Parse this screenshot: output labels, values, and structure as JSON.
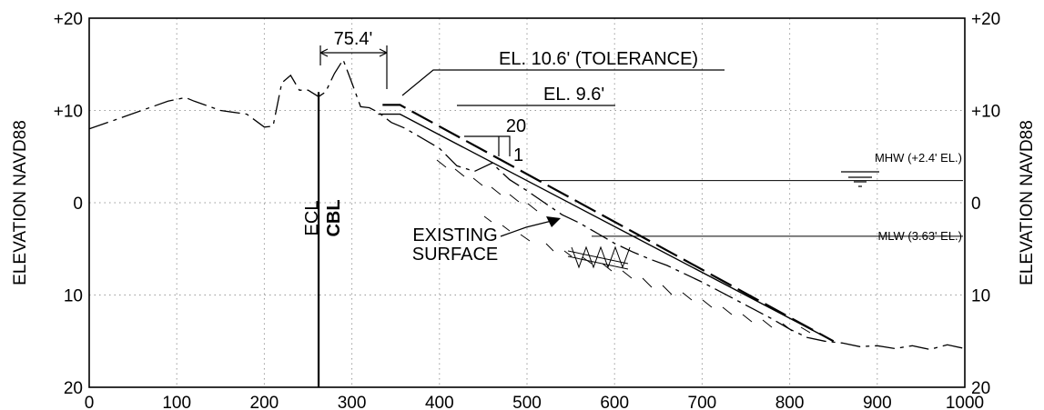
{
  "axes": {
    "x_ticks": [
      "0",
      "100",
      "200",
      "300",
      "400",
      "500",
      "600",
      "700",
      "800",
      "900",
      "1000"
    ],
    "y_ticks_left": [
      "+20",
      "+10",
      "0",
      "10",
      "20"
    ],
    "y_ticks_right": [
      "+20",
      "+10",
      "0",
      "10",
      "20"
    ],
    "y_title_left": "ELEVATION NAVD88",
    "y_title_right": "ELEVATION NAVD88",
    "x_range": [
      0,
      1000
    ],
    "y_range": [
      -20,
      20
    ],
    "grid": true
  },
  "annotations": {
    "width_dim": "75.4'",
    "tolerance": "EL. 10.6' (TOLERANCE)",
    "design_el": "EL. 9.6'",
    "slope_run": "20",
    "slope_rise": "1",
    "ecl": "ECL",
    "cbl": "CBL",
    "existing_line1": "EXISTING",
    "existing_line2": "SURFACE",
    "mhw": "MHW (+2.4' EL.)",
    "mlw": "MLW (3.63' EL.)"
  },
  "chart_data": {
    "type": "line",
    "x_label": "",
    "y_label": "ELEVATION NAVD88",
    "xlim": [
      0,
      1000
    ],
    "ylim": [
      -20,
      20
    ],
    "series": [
      {
        "style": "dash-long",
        "x": [
          0,
          30,
          60,
          90,
          110,
          120,
          150,
          180,
          200,
          210,
          220,
          230,
          240,
          250,
          262,
          270,
          280,
          290,
          300,
          310,
          320,
          330,
          345,
          360,
          380,
          400,
          420,
          440,
          460,
          480,
          500,
          520,
          540,
          560,
          580,
          600,
          620,
          640,
          660,
          680,
          700,
          720,
          740,
          760,
          780,
          800,
          820,
          840,
          860,
          880,
          900,
          920,
          940,
          960,
          980,
          1000
        ],
        "y": [
          8,
          9,
          10,
          11,
          11.4,
          11,
          10,
          9.6,
          8.2,
          8.3,
          13,
          13.8,
          12.2,
          12.2,
          11.5,
          12,
          14,
          15.5,
          13,
          10.4,
          10.3,
          9.8,
          8.7,
          8.1,
          7,
          5.9,
          4,
          3.4,
          4.3,
          2.5,
          1.3,
          0,
          -1.3,
          -2.2,
          -3.3,
          -4.4,
          -5.3,
          -6.1,
          -6.8,
          -7.7,
          -8.6,
          -9.6,
          -10.6,
          -11.6,
          -12.6,
          -13.7,
          -14.6,
          -15,
          -15.2,
          -15.6,
          -15.5,
          -15.8,
          -15.5,
          -15.9,
          -15.4,
          -15.8
        ]
      },
      {
        "style": "dashed",
        "x": [
          335,
          355,
          850
        ],
        "y": [
          10.6,
          10.6,
          -15
        ]
      },
      {
        "style": "solid",
        "x": [
          330,
          355,
          850
        ],
        "y": [
          9.6,
          9.6,
          -15
        ]
      }
    ],
    "reference_lines": [
      {
        "y": 2.4
      },
      {
        "y": -3.63
      },
      {
        "x": 262
      }
    ]
  }
}
